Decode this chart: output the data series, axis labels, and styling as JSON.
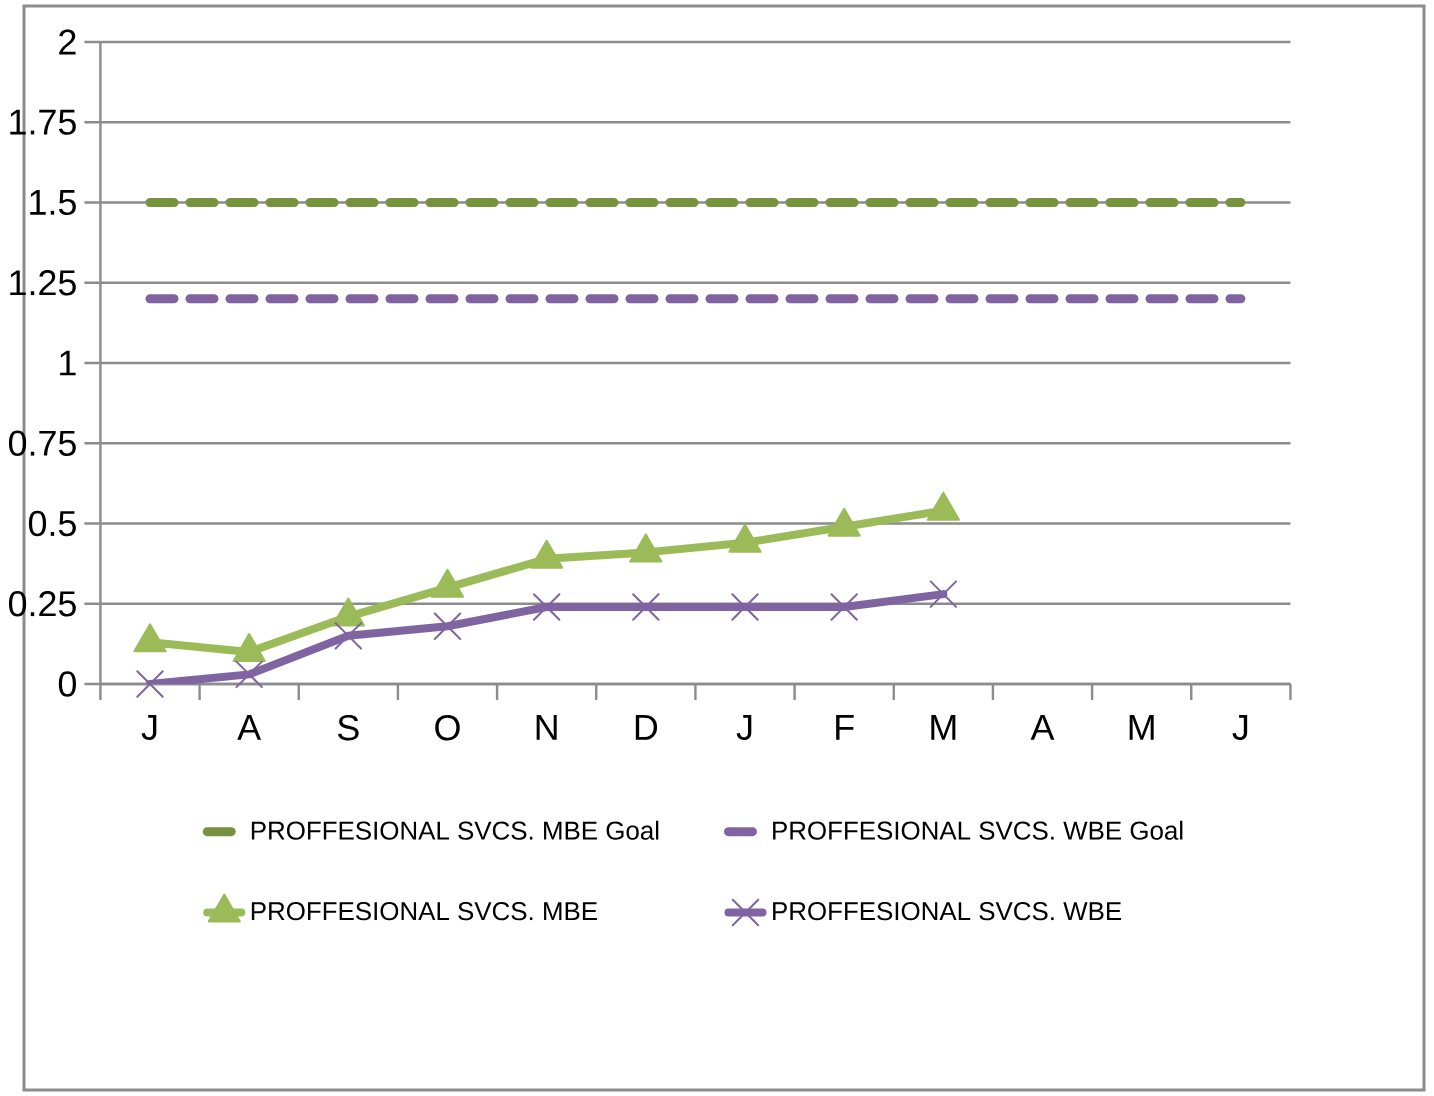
{
  "chart_data": {
    "type": "line",
    "categories": [
      "J",
      "A",
      "S",
      "O",
      "N",
      "D",
      "J",
      "F",
      "M",
      "A",
      "M",
      "J"
    ],
    "series": [
      {
        "name": "PROFFESIONAL SVCS. MBE Goal",
        "color": "#76923c",
        "line_style": "dashed",
        "marker": "none",
        "values": [
          1.5,
          1.5,
          1.5,
          1.5,
          1.5,
          1.5,
          1.5,
          1.5,
          1.5,
          1.5,
          1.5,
          1.5
        ]
      },
      {
        "name": "PROFFESIONAL SVCS. WBE Goal",
        "color": "#8064a2",
        "line_style": "dashed",
        "marker": "none",
        "values": [
          1.2,
          1.2,
          1.2,
          1.2,
          1.2,
          1.2,
          1.2,
          1.2,
          1.2,
          1.2,
          1.2,
          1.2
        ]
      },
      {
        "name": "PROFFESIONAL SVCS. MBE",
        "color": "#9bbb59",
        "line_style": "solid",
        "marker": "triangle",
        "values": [
          0.13,
          0.1,
          0.21,
          0.3,
          0.39,
          0.41,
          0.44,
          0.49,
          0.54,
          null,
          null,
          null
        ]
      },
      {
        "name": "PROFFESIONAL SVCS. WBE",
        "color": "#8064a2",
        "line_style": "solid",
        "marker": "cross",
        "values": [
          0,
          0.03,
          0.15,
          0.18,
          0.24,
          0.24,
          0.24,
          0.24,
          0.28,
          null,
          null,
          null
        ]
      }
    ],
    "ylim": [
      0,
      2
    ],
    "yticks": [
      0,
      0.25,
      0.5,
      0.75,
      1,
      1.25,
      1.5,
      1.75,
      2
    ],
    "grid": "y",
    "legend": "bottom"
  }
}
